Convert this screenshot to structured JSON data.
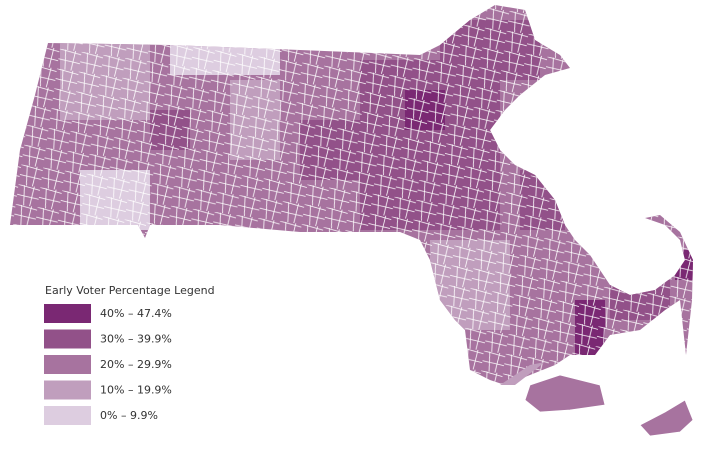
{
  "legend": {
    "title": "Early Voter Percentage Legend",
    "items": [
      {
        "label": "40% – 47.4%",
        "color": "#7a2873"
      },
      {
        "label": "30% – 39.9%",
        "color": "#925189"
      },
      {
        "label": "20% – 29.9%",
        "color": "#a7739f"
      },
      {
        "label": "10% – 19.9%",
        "color": "#c09ebd"
      },
      {
        "label": "0% – 9.9%",
        "color": "#ddcde0"
      }
    ]
  }
}
